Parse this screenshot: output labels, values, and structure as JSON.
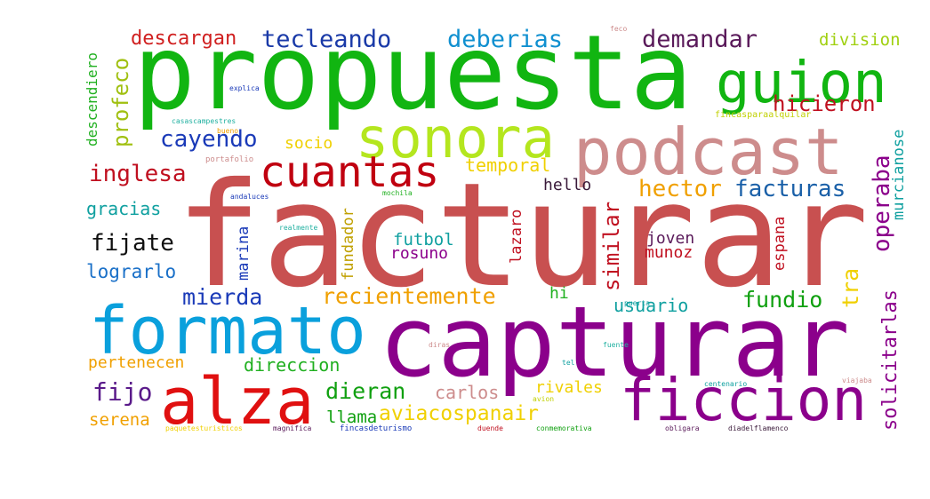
{
  "words": [
    {
      "text": "facturar",
      "color": "#c85050"
    },
    {
      "text": "propuesta",
      "color": "#11b511"
    },
    {
      "text": "capturar",
      "color": "#8b008b"
    },
    {
      "text": "podcast",
      "color": "#cd8c8c"
    },
    {
      "text": "formato",
      "color": "#0aa0dc"
    },
    {
      "text": "sonora",
      "color": "#b4e61e"
    },
    {
      "text": "guion",
      "color": "#11b511"
    },
    {
      "text": "alza",
      "color": "#e01010"
    },
    {
      "text": "ficcion",
      "color": "#8b008b"
    },
    {
      "text": "cuantas",
      "color": "#c00010"
    },
    {
      "text": "tecleando",
      "color": "#1a3aa8"
    },
    {
      "text": "deberias",
      "color": "#1090d0"
    },
    {
      "text": "demandar",
      "color": "#5a1a5a"
    },
    {
      "text": "descargan",
      "color": "#d02020"
    },
    {
      "text": "division",
      "color": "#a0d010"
    },
    {
      "text": "hicieron",
      "color": "#c01020"
    },
    {
      "text": "cayendo",
      "color": "#1a3ab8"
    },
    {
      "text": "socio",
      "color": "#f0d000"
    },
    {
      "text": "temporal",
      "color": "#f0d000"
    },
    {
      "text": "inglesa",
      "color": "#c01020"
    },
    {
      "text": "hector",
      "color": "#f0a000"
    },
    {
      "text": "facturas",
      "color": "#1a60a8"
    },
    {
      "text": "hello",
      "color": "#3a1a3a"
    },
    {
      "text": "gracias",
      "color": "#10a0a0"
    },
    {
      "text": "fijate",
      "color": "#101010"
    },
    {
      "text": "futbol",
      "color": "#10a0a0"
    },
    {
      "text": "rosuno",
      "color": "#8b008b"
    },
    {
      "text": "joven",
      "color": "#5a1a5a"
    },
    {
      "text": "munoz",
      "color": "#c01020"
    },
    {
      "text": "lograrlo",
      "color": "#1a70c8"
    },
    {
      "text": "mierda",
      "color": "#1a3ab8"
    },
    {
      "text": "recientemente",
      "color": "#f0a000"
    },
    {
      "text": "fundio",
      "color": "#10a010"
    },
    {
      "text": "hi",
      "color": "#20b020"
    },
    {
      "text": "usuario",
      "color": "#10a0a0"
    },
    {
      "text": "pertenecen",
      "color": "#f0a000"
    },
    {
      "text": "direccion",
      "color": "#20b020"
    },
    {
      "text": "fijo",
      "color": "#5a1a8a"
    },
    {
      "text": "dieran",
      "color": "#10a010"
    },
    {
      "text": "carlos",
      "color": "#cd8c8c"
    },
    {
      "text": "rivales",
      "color": "#f0d000"
    },
    {
      "text": "aviacospanair",
      "color": "#f0d000"
    },
    {
      "text": "llama",
      "color": "#10a010"
    },
    {
      "text": "serena",
      "color": "#f0a000"
    },
    {
      "text": "descendiero",
      "color": "#20b020"
    },
    {
      "text": "profeco",
      "color": "#a0c010"
    },
    {
      "text": "operaba",
      "color": "#8b008b"
    },
    {
      "text": "murcianose",
      "color": "#10a0a0"
    },
    {
      "text": "fundador",
      "color": "#c0a000"
    },
    {
      "text": "marina",
      "color": "#1a3ab8"
    },
    {
      "text": "lazaro",
      "color": "#c01020"
    },
    {
      "text": "similar",
      "color": "#c01020"
    },
    {
      "text": "tra",
      "color": "#f0d000"
    },
    {
      "text": "espana",
      "color": "#c01020"
    },
    {
      "text": "solicitarlas",
      "color": "#8b008b"
    },
    {
      "text": "explica",
      "color": "#1a3ab8"
    },
    {
      "text": "casascampestres",
      "color": "#20b0a0"
    },
    {
      "text": "bueno",
      "color": "#f0a000"
    },
    {
      "text": "portafolio",
      "color": "#cd8c8c"
    },
    {
      "text": "fincasparaalquilar",
      "color": "#c0d000"
    },
    {
      "text": "andaluces",
      "color": "#1a3ab8"
    },
    {
      "text": "mochila",
      "color": "#20b020"
    },
    {
      "text": "realmente",
      "color": "#20b0a0"
    },
    {
      "text": "puerta",
      "color": "#10a0a0"
    },
    {
      "text": "diras",
      "color": "#cd8c8c"
    },
    {
      "text": "fuente",
      "color": "#20b0a0"
    },
    {
      "text": "tel",
      "color": "#10a0a0"
    },
    {
      "text": "centenario",
      "color": "#10a0a0"
    },
    {
      "text": "viajaba",
      "color": "#cd8c8c"
    },
    {
      "text": "avion",
      "color": "#c0d000"
    },
    {
      "text": "paquetesturisticos",
      "color": "#f0d000"
    },
    {
      "text": "magnifica",
      "color": "#5a1a5a"
    },
    {
      "text": "fincasdeturismo",
      "color": "#1a3ab8"
    },
    {
      "text": "duende",
      "color": "#c01020"
    },
    {
      "text": "conmemorativa",
      "color": "#10a010"
    },
    {
      "text": "obligara",
      "color": "#5a1a5a"
    },
    {
      "text": "diadelflamenco",
      "color": "#3a1a3a"
    },
    {
      "text": "feco",
      "color": "#cd8c8c"
    }
  ]
}
